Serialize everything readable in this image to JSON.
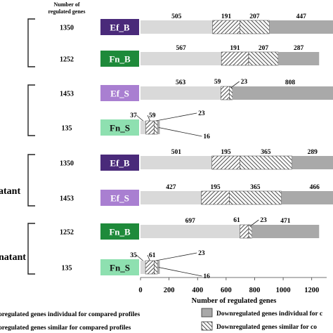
{
  "chart_data": {
    "type": "bar",
    "orientation": "horizontal",
    "stacked": true,
    "count_header": [
      "Number of",
      "regulated genes"
    ],
    "xlabel": "Number of regulated genes",
    "xlim": [
      0,
      1300
    ],
    "xticks": [
      "0",
      "200",
      "400",
      "600",
      "800",
      "1000",
      "1200"
    ],
    "group_labels": [
      "atant",
      "natant"
    ],
    "legend": [
      "oregulated genes  individual for compared profiles",
      "oregulated genes  similar for compared profiles",
      "Downregulated genes individual for c",
      "Downregulated genes similar for co"
    ],
    "rows": [
      {
        "badge": "Ef_B",
        "total": "1350",
        "badge_color": "#4a2a7a",
        "values": [
          505,
          191,
          207,
          447
        ]
      },
      {
        "badge": "Fn_B",
        "total": "1252",
        "badge_color": "#1e8a3a",
        "values": [
          567,
          191,
          207,
          287
        ]
      },
      {
        "badge": "Ef_S",
        "total": "1453",
        "badge_color": "#a97fd1",
        "values": [
          563,
          59,
          23,
          808
        ]
      },
      {
        "badge": "Fn_S",
        "total": "135",
        "badge_color": "#8ee0b0",
        "values": [
          37,
          59,
          23,
          16
        ]
      },
      {
        "badge": "Ef_B",
        "total": "1350",
        "badge_color": "#4a2a7a",
        "values": [
          501,
          195,
          365,
          289
        ]
      },
      {
        "badge": "Ef_S",
        "total": "1453",
        "badge_color": "#a97fd1",
        "values": [
          427,
          195,
          365,
          466
        ]
      },
      {
        "badge": "Fn_B",
        "total": "1252",
        "badge_color": "#1e8a3a",
        "values": [
          697,
          61,
          23,
          471
        ]
      },
      {
        "badge": "Fn_S",
        "total": "135",
        "badge_color": "#8ee0b0",
        "values": [
          35,
          61,
          23,
          16
        ]
      }
    ]
  }
}
